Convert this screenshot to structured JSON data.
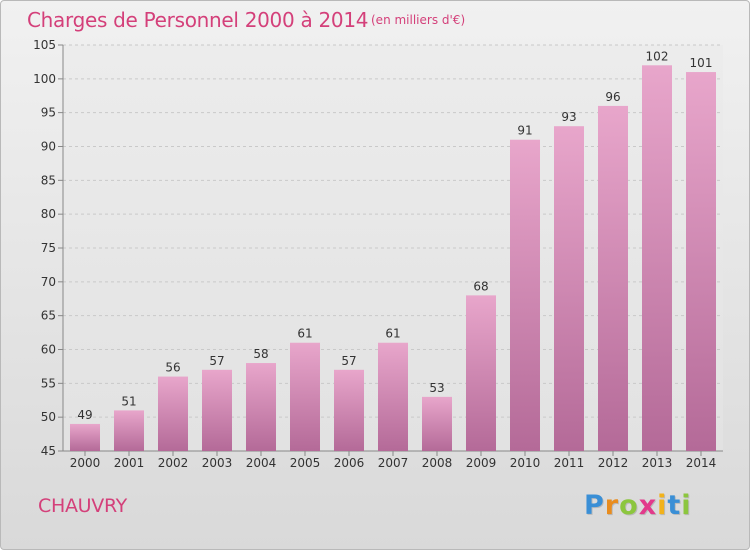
{
  "title": "Charges de Personnel 2000 à 2014",
  "subtitle": "(en milliers d'€)",
  "commune": "CHAUVRY",
  "logo": {
    "text": "Proxiti",
    "letters": [
      {
        "ch": "P",
        "color": "#3a8fd6"
      },
      {
        "ch": "r",
        "color": "#e98c1d"
      },
      {
        "ch": "o",
        "color": "#8cc63e"
      },
      {
        "ch": "x",
        "color": "#e23a8b"
      },
      {
        "ch": "i",
        "color": "#f2b21a"
      },
      {
        "ch": "t",
        "color": "#3a8fd6"
      },
      {
        "ch": "i",
        "color": "#8cc63e"
      }
    ]
  },
  "colors": {
    "title": "#d4407a",
    "bar_top": "#e8a6cb",
    "bar_bottom": "#b46a98",
    "grid": "#c9c9c9"
  },
  "chart_data": {
    "type": "bar",
    "categories": [
      "2000",
      "2001",
      "2002",
      "2003",
      "2004",
      "2005",
      "2006",
      "2007",
      "2008",
      "2009",
      "2010",
      "2011",
      "2012",
      "2013",
      "2014"
    ],
    "values": [
      49,
      51,
      56,
      57,
      58,
      61,
      57,
      61,
      53,
      68,
      91,
      93,
      96,
      102,
      101
    ],
    "ylim": [
      45,
      105
    ],
    "yticks": [
      45,
      50,
      55,
      60,
      65,
      70,
      75,
      80,
      85,
      90,
      95,
      100,
      105
    ],
    "grid": true,
    "data_labels": true
  }
}
